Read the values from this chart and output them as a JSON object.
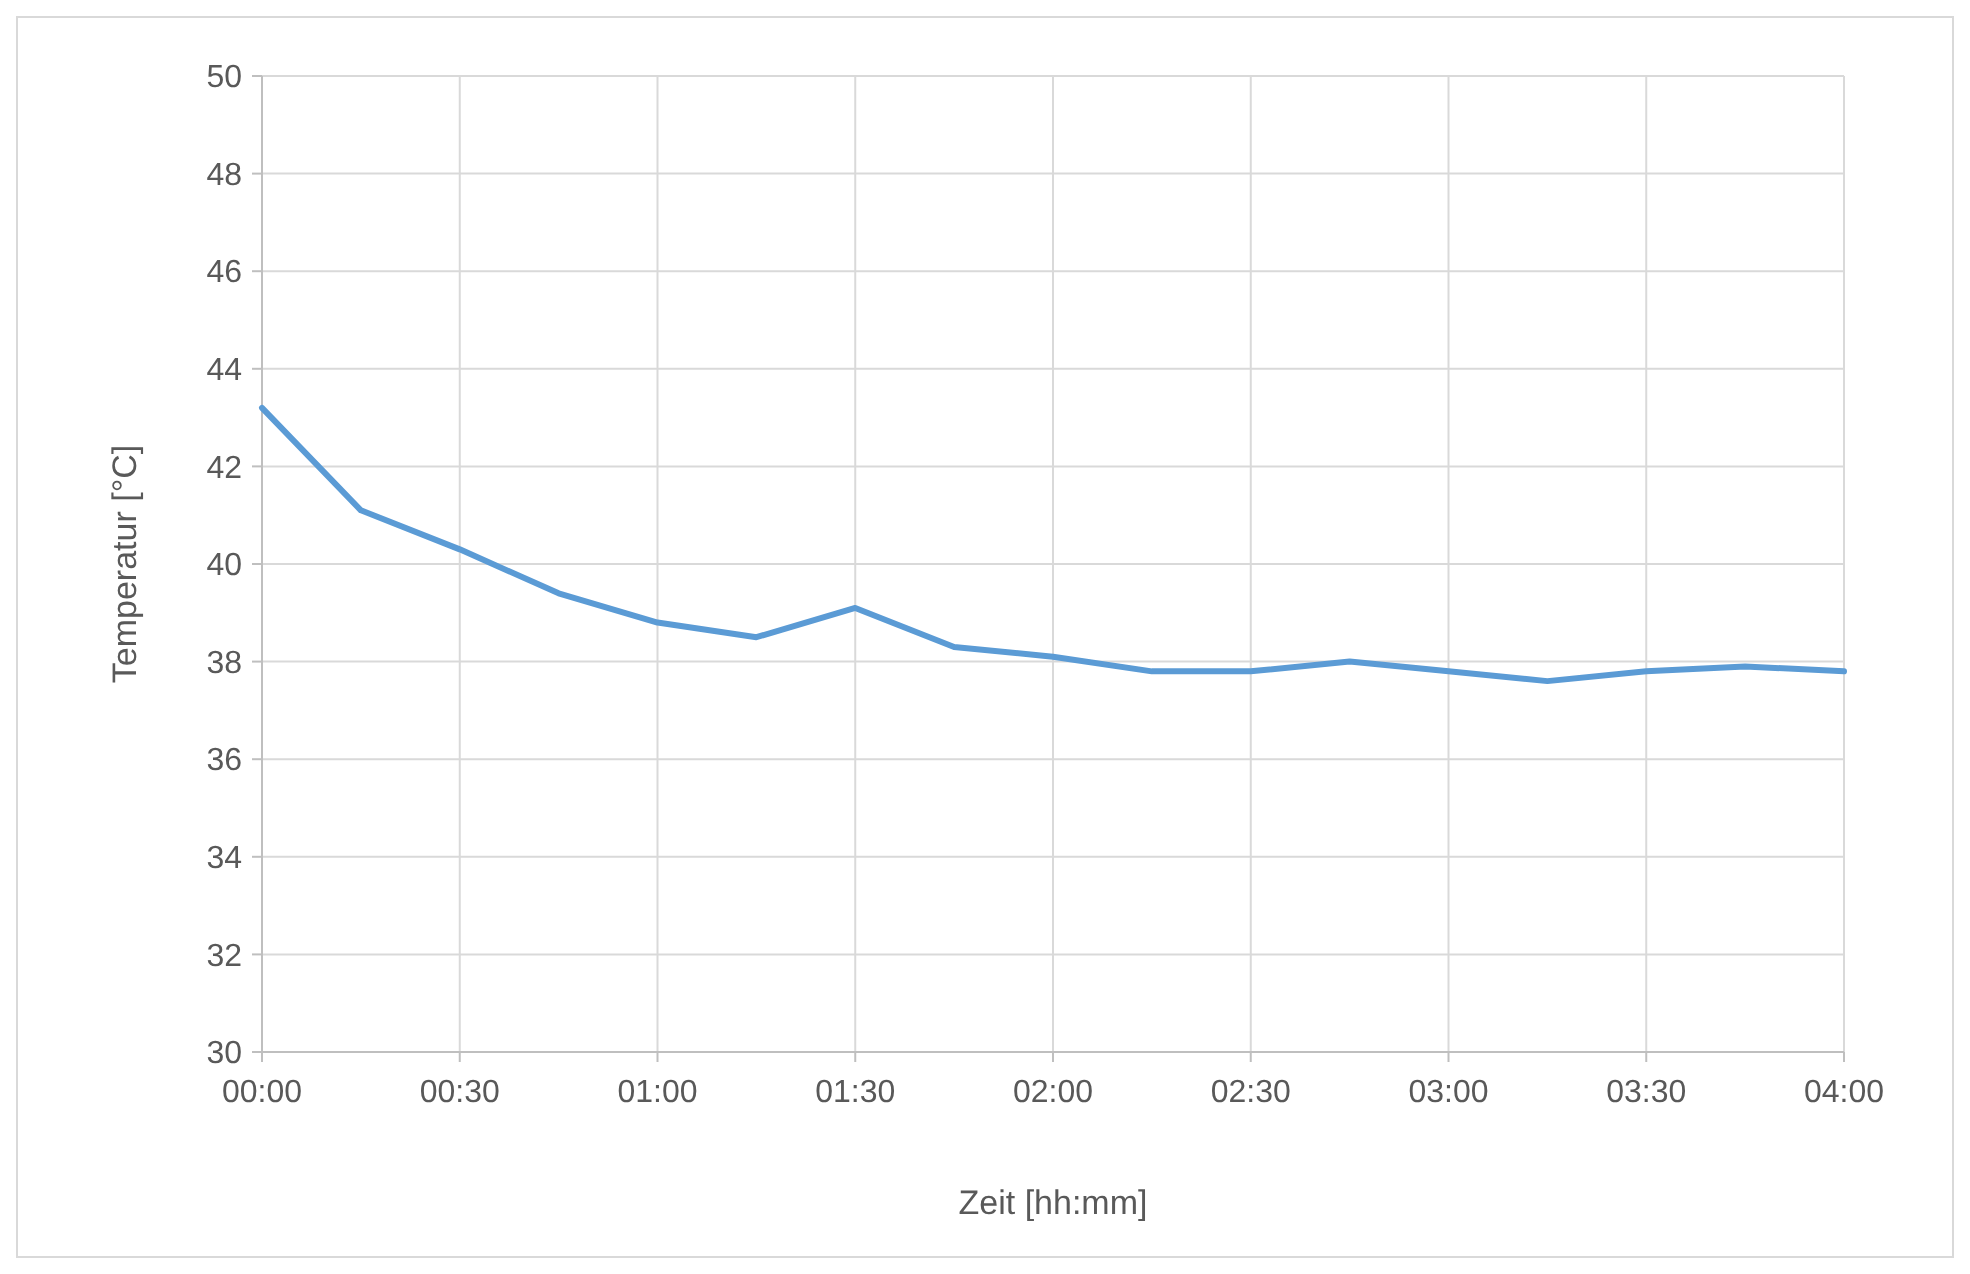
{
  "chart_data": {
    "type": "line",
    "xlabel": "Zeit [hh:mm]",
    "ylabel": "Temperatur [°C]",
    "x": [
      0,
      0.25,
      0.5,
      0.75,
      1,
      1.25,
      1.5,
      1.75,
      2,
      2.25,
      2.5,
      2.75,
      3,
      3.25,
      3.5,
      3.75,
      4
    ],
    "series": [
      {
        "color": "#5b9bd5",
        "values": [
          43.2,
          41.1,
          40.3,
          39.4,
          38.8,
          38.5,
          39.1,
          38.3,
          38.1,
          37.8,
          37.8,
          38.0,
          37.8,
          37.6,
          37.8,
          37.9,
          37.8
        ]
      }
    ],
    "xlim": [
      0,
      4
    ],
    "xticks": [
      {
        "value": 0,
        "label": "00:00"
      },
      {
        "value": 0.5,
        "label": "00:30"
      },
      {
        "value": 1,
        "label": "01:00"
      },
      {
        "value": 1.5,
        "label": "01:30"
      },
      {
        "value": 2,
        "label": "02:00"
      },
      {
        "value": 2.5,
        "label": "02:30"
      },
      {
        "value": 3,
        "label": "03:00"
      },
      {
        "value": 3.5,
        "label": "03:30"
      },
      {
        "value": 4,
        "label": "04:00"
      }
    ],
    "ylim": [
      30,
      50
    ],
    "yticks": [
      30,
      32,
      34,
      36,
      38,
      40,
      42,
      44,
      46,
      48,
      50
    ],
    "grid": true,
    "marker": "none",
    "line_style": "solid"
  }
}
